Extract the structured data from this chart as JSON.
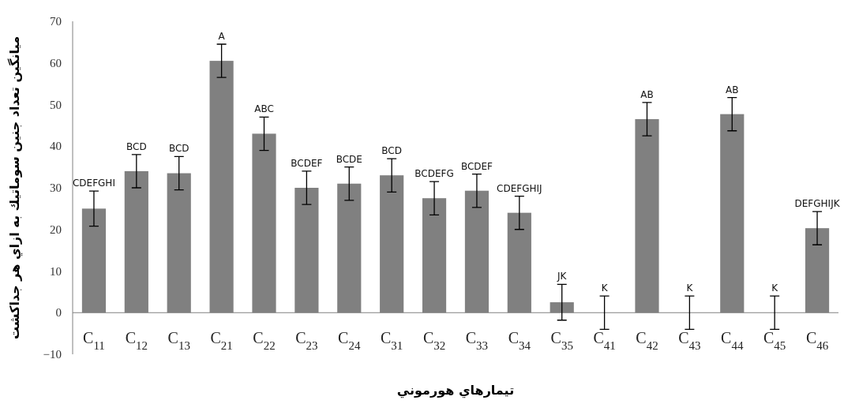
{
  "chart_data": {
    "type": "bar",
    "xlabel": "تيمارهاي هورموني",
    "ylabel": "ميانگين تعداد جنين سوماتيك به ازاي هر جداكشت",
    "categories": [
      "C$_{11}$",
      "C$_{12}$",
      "C$_{13}$",
      "C$_{21}$",
      "C$_{22}$",
      "C$_{23}$",
      "C$_{24}$",
      "C$_{31}$",
      "C$_{32}$",
      "C$_{33}$",
      "C$_{34}$",
      "C$_{35}$",
      "C$_{41}$",
      "C$_{42}$",
      "C$_{43}$",
      "C$_{44}$",
      "C$_{45}$",
      "C$_{46}$"
    ],
    "values": [
      25,
      34,
      33.5,
      60.5,
      43,
      30,
      31,
      33,
      27.5,
      29.3,
      24,
      2.5,
      0,
      46.5,
      0,
      47.7,
      0,
      20.3
    ],
    "errors": [
      4.2,
      4,
      4,
      4,
      4,
      4,
      4,
      4,
      4,
      4,
      4,
      4.3,
      4,
      4,
      4,
      4,
      4,
      4
    ],
    "color": "#808080",
    "ylim": [
      -10,
      70
    ],
    "yticks": [
      -10,
      0,
      10,
      20,
      30,
      40,
      50,
      60,
      70
    ],
    "grid": false,
    "annotations": [
      {
        "text": "CDEFGHI",
        "x": "C$_{11}$",
        "y": 29.2
      },
      {
        "text": "BCD",
        "x": "C$_{12}$",
        "y": 38
      },
      {
        "text": "BCD",
        "x": "C$_{13}$",
        "y": 37.5
      },
      {
        "text": "A",
        "x": "C$_{21}$",
        "y": 64.5
      },
      {
        "text": "ABC",
        "x": "C$_{22}$",
        "y": 47
      },
      {
        "text": "BCDEF",
        "x": "C$_{23}$",
        "y": 34
      },
      {
        "text": "BCDE",
        "x": "C$_{24}$",
        "y": 35
      },
      {
        "text": "BCD",
        "x": "C$_{31}$",
        "y": 37
      },
      {
        "text": "BCDEFG",
        "x": "C$_{32}$",
        "y": 31.5
      },
      {
        "text": "BCDEF",
        "x": "C$_{33}$",
        "y": 33.3
      },
      {
        "text": "CDEFGHIJ",
        "x": "C$_{34}$",
        "y": 28
      },
      {
        "text": "JK",
        "x": "C$_{35}$",
        "y": 6.8
      },
      {
        "text": "K",
        "x": "C$_{41}$",
        "y": 4
      },
      {
        "text": "AB",
        "x": "C$_{42}$",
        "y": 50.5
      },
      {
        "text": "K",
        "x": "C$_{43}$",
        "y": 4
      },
      {
        "text": "AB",
        "x": "C$_{44}$",
        "y": 51.7
      },
      {
        "text": "K",
        "x": "C$_{45}$",
        "y": 4
      },
      {
        "text": "DEFGHIJK",
        "x": "C$_{46}$",
        "y": 24.3
      }
    ]
  }
}
